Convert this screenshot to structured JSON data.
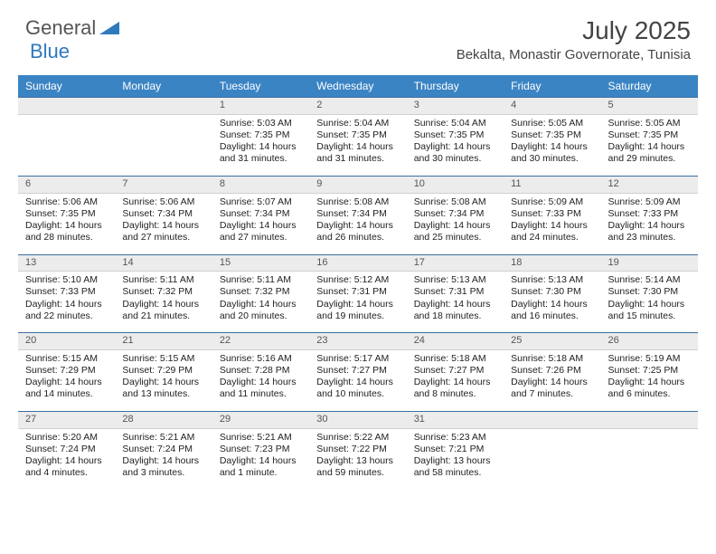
{
  "brand": {
    "part1": "General",
    "part2": "Blue"
  },
  "title": "July 2025",
  "location": "Bekalta, Monastir Governorate, Tunisia",
  "colors": {
    "header_bg": "#3b84c4",
    "header_text": "#ffffff",
    "daynum_bg": "#ececec",
    "daynum_border_top": "#3b6fa0",
    "text": "#222222",
    "brand_gray": "#555555",
    "brand_blue": "#2f79bd"
  },
  "typography": {
    "title_fontsize": 28,
    "location_fontsize": 15,
    "dayheader_fontsize": 12,
    "cell_fontsize": 10.5
  },
  "day_headers": [
    "Sunday",
    "Monday",
    "Tuesday",
    "Wednesday",
    "Thursday",
    "Friday",
    "Saturday"
  ],
  "weeks": [
    [
      null,
      null,
      {
        "n": "1",
        "sunrise": "5:03 AM",
        "sunset": "7:35 PM",
        "daylight": "14 hours and 31 minutes."
      },
      {
        "n": "2",
        "sunrise": "5:04 AM",
        "sunset": "7:35 PM",
        "daylight": "14 hours and 31 minutes."
      },
      {
        "n": "3",
        "sunrise": "5:04 AM",
        "sunset": "7:35 PM",
        "daylight": "14 hours and 30 minutes."
      },
      {
        "n": "4",
        "sunrise": "5:05 AM",
        "sunset": "7:35 PM",
        "daylight": "14 hours and 30 minutes."
      },
      {
        "n": "5",
        "sunrise": "5:05 AM",
        "sunset": "7:35 PM",
        "daylight": "14 hours and 29 minutes."
      }
    ],
    [
      {
        "n": "6",
        "sunrise": "5:06 AM",
        "sunset": "7:35 PM",
        "daylight": "14 hours and 28 minutes."
      },
      {
        "n": "7",
        "sunrise": "5:06 AM",
        "sunset": "7:34 PM",
        "daylight": "14 hours and 27 minutes."
      },
      {
        "n": "8",
        "sunrise": "5:07 AM",
        "sunset": "7:34 PM",
        "daylight": "14 hours and 27 minutes."
      },
      {
        "n": "9",
        "sunrise": "5:08 AM",
        "sunset": "7:34 PM",
        "daylight": "14 hours and 26 minutes."
      },
      {
        "n": "10",
        "sunrise": "5:08 AM",
        "sunset": "7:34 PM",
        "daylight": "14 hours and 25 minutes."
      },
      {
        "n": "11",
        "sunrise": "5:09 AM",
        "sunset": "7:33 PM",
        "daylight": "14 hours and 24 minutes."
      },
      {
        "n": "12",
        "sunrise": "5:09 AM",
        "sunset": "7:33 PM",
        "daylight": "14 hours and 23 minutes."
      }
    ],
    [
      {
        "n": "13",
        "sunrise": "5:10 AM",
        "sunset": "7:33 PM",
        "daylight": "14 hours and 22 minutes."
      },
      {
        "n": "14",
        "sunrise": "5:11 AM",
        "sunset": "7:32 PM",
        "daylight": "14 hours and 21 minutes."
      },
      {
        "n": "15",
        "sunrise": "5:11 AM",
        "sunset": "7:32 PM",
        "daylight": "14 hours and 20 minutes."
      },
      {
        "n": "16",
        "sunrise": "5:12 AM",
        "sunset": "7:31 PM",
        "daylight": "14 hours and 19 minutes."
      },
      {
        "n": "17",
        "sunrise": "5:13 AM",
        "sunset": "7:31 PM",
        "daylight": "14 hours and 18 minutes."
      },
      {
        "n": "18",
        "sunrise": "5:13 AM",
        "sunset": "7:30 PM",
        "daylight": "14 hours and 16 minutes."
      },
      {
        "n": "19",
        "sunrise": "5:14 AM",
        "sunset": "7:30 PM",
        "daylight": "14 hours and 15 minutes."
      }
    ],
    [
      {
        "n": "20",
        "sunrise": "5:15 AM",
        "sunset": "7:29 PM",
        "daylight": "14 hours and 14 minutes."
      },
      {
        "n": "21",
        "sunrise": "5:15 AM",
        "sunset": "7:29 PM",
        "daylight": "14 hours and 13 minutes."
      },
      {
        "n": "22",
        "sunrise": "5:16 AM",
        "sunset": "7:28 PM",
        "daylight": "14 hours and 11 minutes."
      },
      {
        "n": "23",
        "sunrise": "5:17 AM",
        "sunset": "7:27 PM",
        "daylight": "14 hours and 10 minutes."
      },
      {
        "n": "24",
        "sunrise": "5:18 AM",
        "sunset": "7:27 PM",
        "daylight": "14 hours and 8 minutes."
      },
      {
        "n": "25",
        "sunrise": "5:18 AM",
        "sunset": "7:26 PM",
        "daylight": "14 hours and 7 minutes."
      },
      {
        "n": "26",
        "sunrise": "5:19 AM",
        "sunset": "7:25 PM",
        "daylight": "14 hours and 6 minutes."
      }
    ],
    [
      {
        "n": "27",
        "sunrise": "5:20 AM",
        "sunset": "7:24 PM",
        "daylight": "14 hours and 4 minutes."
      },
      {
        "n": "28",
        "sunrise": "5:21 AM",
        "sunset": "7:24 PM",
        "daylight": "14 hours and 3 minutes."
      },
      {
        "n": "29",
        "sunrise": "5:21 AM",
        "sunset": "7:23 PM",
        "daylight": "14 hours and 1 minute."
      },
      {
        "n": "30",
        "sunrise": "5:22 AM",
        "sunset": "7:22 PM",
        "daylight": "13 hours and 59 minutes."
      },
      {
        "n": "31",
        "sunrise": "5:23 AM",
        "sunset": "7:21 PM",
        "daylight": "13 hours and 58 minutes."
      },
      null,
      null
    ]
  ],
  "labels": {
    "sunrise": "Sunrise: ",
    "sunset": "Sunset: ",
    "daylight": "Daylight: "
  }
}
